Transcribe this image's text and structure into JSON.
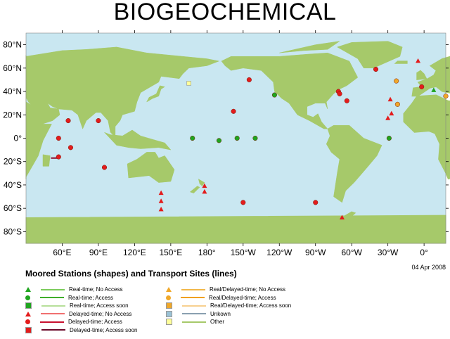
{
  "title": "BIOGEOCHEMICAL",
  "date": "04 Apr 2008",
  "subtitle": "Moored Stations (shapes) and Transport Sites (lines)",
  "colors": {
    "ocean": "#c9e7f1",
    "land": "#a6c96a",
    "realtime": "#1fa51f",
    "delayed": "#e31c1c",
    "delayed_soon": "#8b0a2a",
    "realdelayed": "#f0a82a",
    "unknown": "#9ac2d6",
    "other_fill": "#ffff99"
  },
  "axes": {
    "lat_labels": [
      "80°N",
      "60°N",
      "40°N",
      "20°N",
      "0°",
      "20°S",
      "40°S",
      "60°S",
      "80°S"
    ],
    "lon_labels": [
      "60°E",
      "90°E",
      "120°E",
      "150°E",
      "180°",
      "150°W",
      "120°W",
      "90°W",
      "60°W",
      "30°W",
      "0°"
    ]
  },
  "legend_left": [
    {
      "label": "Real-time; No Access",
      "shape": "triangle",
      "color": "#1fa51f",
      "line": "#7ccc5c"
    },
    {
      "label": "Real-time; Access",
      "shape": "circle",
      "color": "#1fa51f",
      "line": "#3fae2a"
    },
    {
      "label": "Real-time; Access soon",
      "shape": "square",
      "color": "#1fa51f",
      "line": "#b7df9a"
    },
    {
      "label": "Delayed-time; No Access",
      "shape": "triangle",
      "color": "#e31c1c",
      "line": "#f07070"
    },
    {
      "label": "Delayed-time; Access",
      "shape": "circle",
      "color": "#e31c1c",
      "line": "#c8102e"
    },
    {
      "label": "Delayed-time; Access soon",
      "shape": "square",
      "color": "#e31c1c",
      "line": "#6b0a2a"
    }
  ],
  "legend_right": [
    {
      "label": "Real/Delayed-time; No Access",
      "shape": "triangle",
      "color": "#f0a82a",
      "line": "#f2b84a"
    },
    {
      "label": "Real/Delayed-time; Access",
      "shape": "circle",
      "color": "#f0a82a",
      "line": "#f0a020"
    },
    {
      "label": "Real/Delayed-time; Access soon",
      "shape": "square",
      "color": "#f0a82a",
      "line": "#f7d090"
    },
    {
      "label": "Unkown",
      "shape": "square",
      "color": "#9ac2d6",
      "line": "#8aa0b0"
    },
    {
      "label": "Other",
      "shape": "square",
      "color": "#ffff99",
      "line": "#a6c96a"
    }
  ],
  "stations": [
    {
      "lon": 53,
      "lat": -17,
      "type": "delayed_line"
    },
    {
      "lon": 57,
      "lat": 0,
      "type": "circle",
      "color": "#e31c1c"
    },
    {
      "lon": 57,
      "lat": -16,
      "type": "circle",
      "color": "#e31c1c"
    },
    {
      "lon": 65,
      "lat": 15,
      "type": "circle",
      "color": "#e31c1c"
    },
    {
      "lon": 67,
      "lat": -8,
      "type": "circle",
      "color": "#e31c1c"
    },
    {
      "lon": 90,
      "lat": 15,
      "type": "circle",
      "color": "#e31c1c"
    },
    {
      "lon": 95,
      "lat": -25,
      "type": "circle",
      "color": "#e31c1c"
    },
    {
      "lon": 142,
      "lat": -47,
      "type": "triangle",
      "color": "#e31c1c"
    },
    {
      "lon": 142,
      "lat": -54,
      "type": "triangle",
      "color": "#e31c1c"
    },
    {
      "lon": 142,
      "lat": -61,
      "type": "triangle",
      "color": "#e31c1c"
    },
    {
      "lon": 165,
      "lat": 47,
      "type": "square",
      "color": "#ffff99"
    },
    {
      "lon": 168,
      "lat": 0,
      "type": "circle",
      "color": "#1fa51f"
    },
    {
      "lon": 178,
      "lat": -41,
      "type": "triangle",
      "color": "#e31c1c"
    },
    {
      "lon": 178,
      "lat": -46,
      "type": "triangle",
      "color": "#e31c1c"
    },
    {
      "lon": -170,
      "lat": -2,
      "type": "circle",
      "color": "#1fa51f"
    },
    {
      "lon": -158,
      "lat": 23,
      "type": "circle",
      "color": "#e31c1c"
    },
    {
      "lon": -155,
      "lat": 0,
      "type": "circle",
      "color": "#1fa51f"
    },
    {
      "lon": -150,
      "lat": -55,
      "type": "circle",
      "color": "#e31c1c"
    },
    {
      "lon": -145,
      "lat": 50,
      "type": "circle",
      "color": "#e31c1c"
    },
    {
      "lon": -140,
      "lat": 0,
      "type": "circle",
      "color": "#1fa51f"
    },
    {
      "lon": -124,
      "lat": 37,
      "type": "circle",
      "color": "#1fa51f"
    },
    {
      "lon": -90,
      "lat": -55,
      "type": "circle",
      "color": "#e31c1c"
    },
    {
      "lon": -71,
      "lat": 40,
      "type": "circle",
      "color": "#e31c1c"
    },
    {
      "lon": -70,
      "lat": 38,
      "type": "circle",
      "color": "#e31c1c"
    },
    {
      "lon": -68,
      "lat": -68,
      "type": "triangle",
      "color": "#e31c1c"
    },
    {
      "lon": -64,
      "lat": 32,
      "type": "circle",
      "color": "#e31c1c"
    },
    {
      "lon": -40,
      "lat": 59,
      "type": "circle",
      "color": "#e31c1c"
    },
    {
      "lon": -30,
      "lat": 17,
      "type": "triangle",
      "color": "#e31c1c"
    },
    {
      "lon": -28,
      "lat": 33,
      "type": "triangle",
      "color": "#e31c1c"
    },
    {
      "lon": -27,
      "lat": 21,
      "type": "triangle",
      "color": "#e31c1c"
    },
    {
      "lon": -29,
      "lat": 0,
      "type": "circle",
      "color": "#1fa51f"
    },
    {
      "lon": -22,
      "lat": 29,
      "type": "circle",
      "color": "#f0a82a"
    },
    {
      "lon": -23,
      "lat": 49,
      "type": "circle",
      "color": "#f0a82a"
    },
    {
      "lon": -5,
      "lat": 66,
      "type": "triangle",
      "color": "#e31c1c"
    },
    {
      "lon": -2,
      "lat": 44,
      "type": "circle",
      "color": "#e31c1c"
    },
    {
      "lon": 8,
      "lat": 41,
      "type": "triangle",
      "color": "#1fa51f"
    },
    {
      "lon": 18,
      "lat": 36,
      "type": "circle",
      "color": "#f0a82a"
    }
  ]
}
